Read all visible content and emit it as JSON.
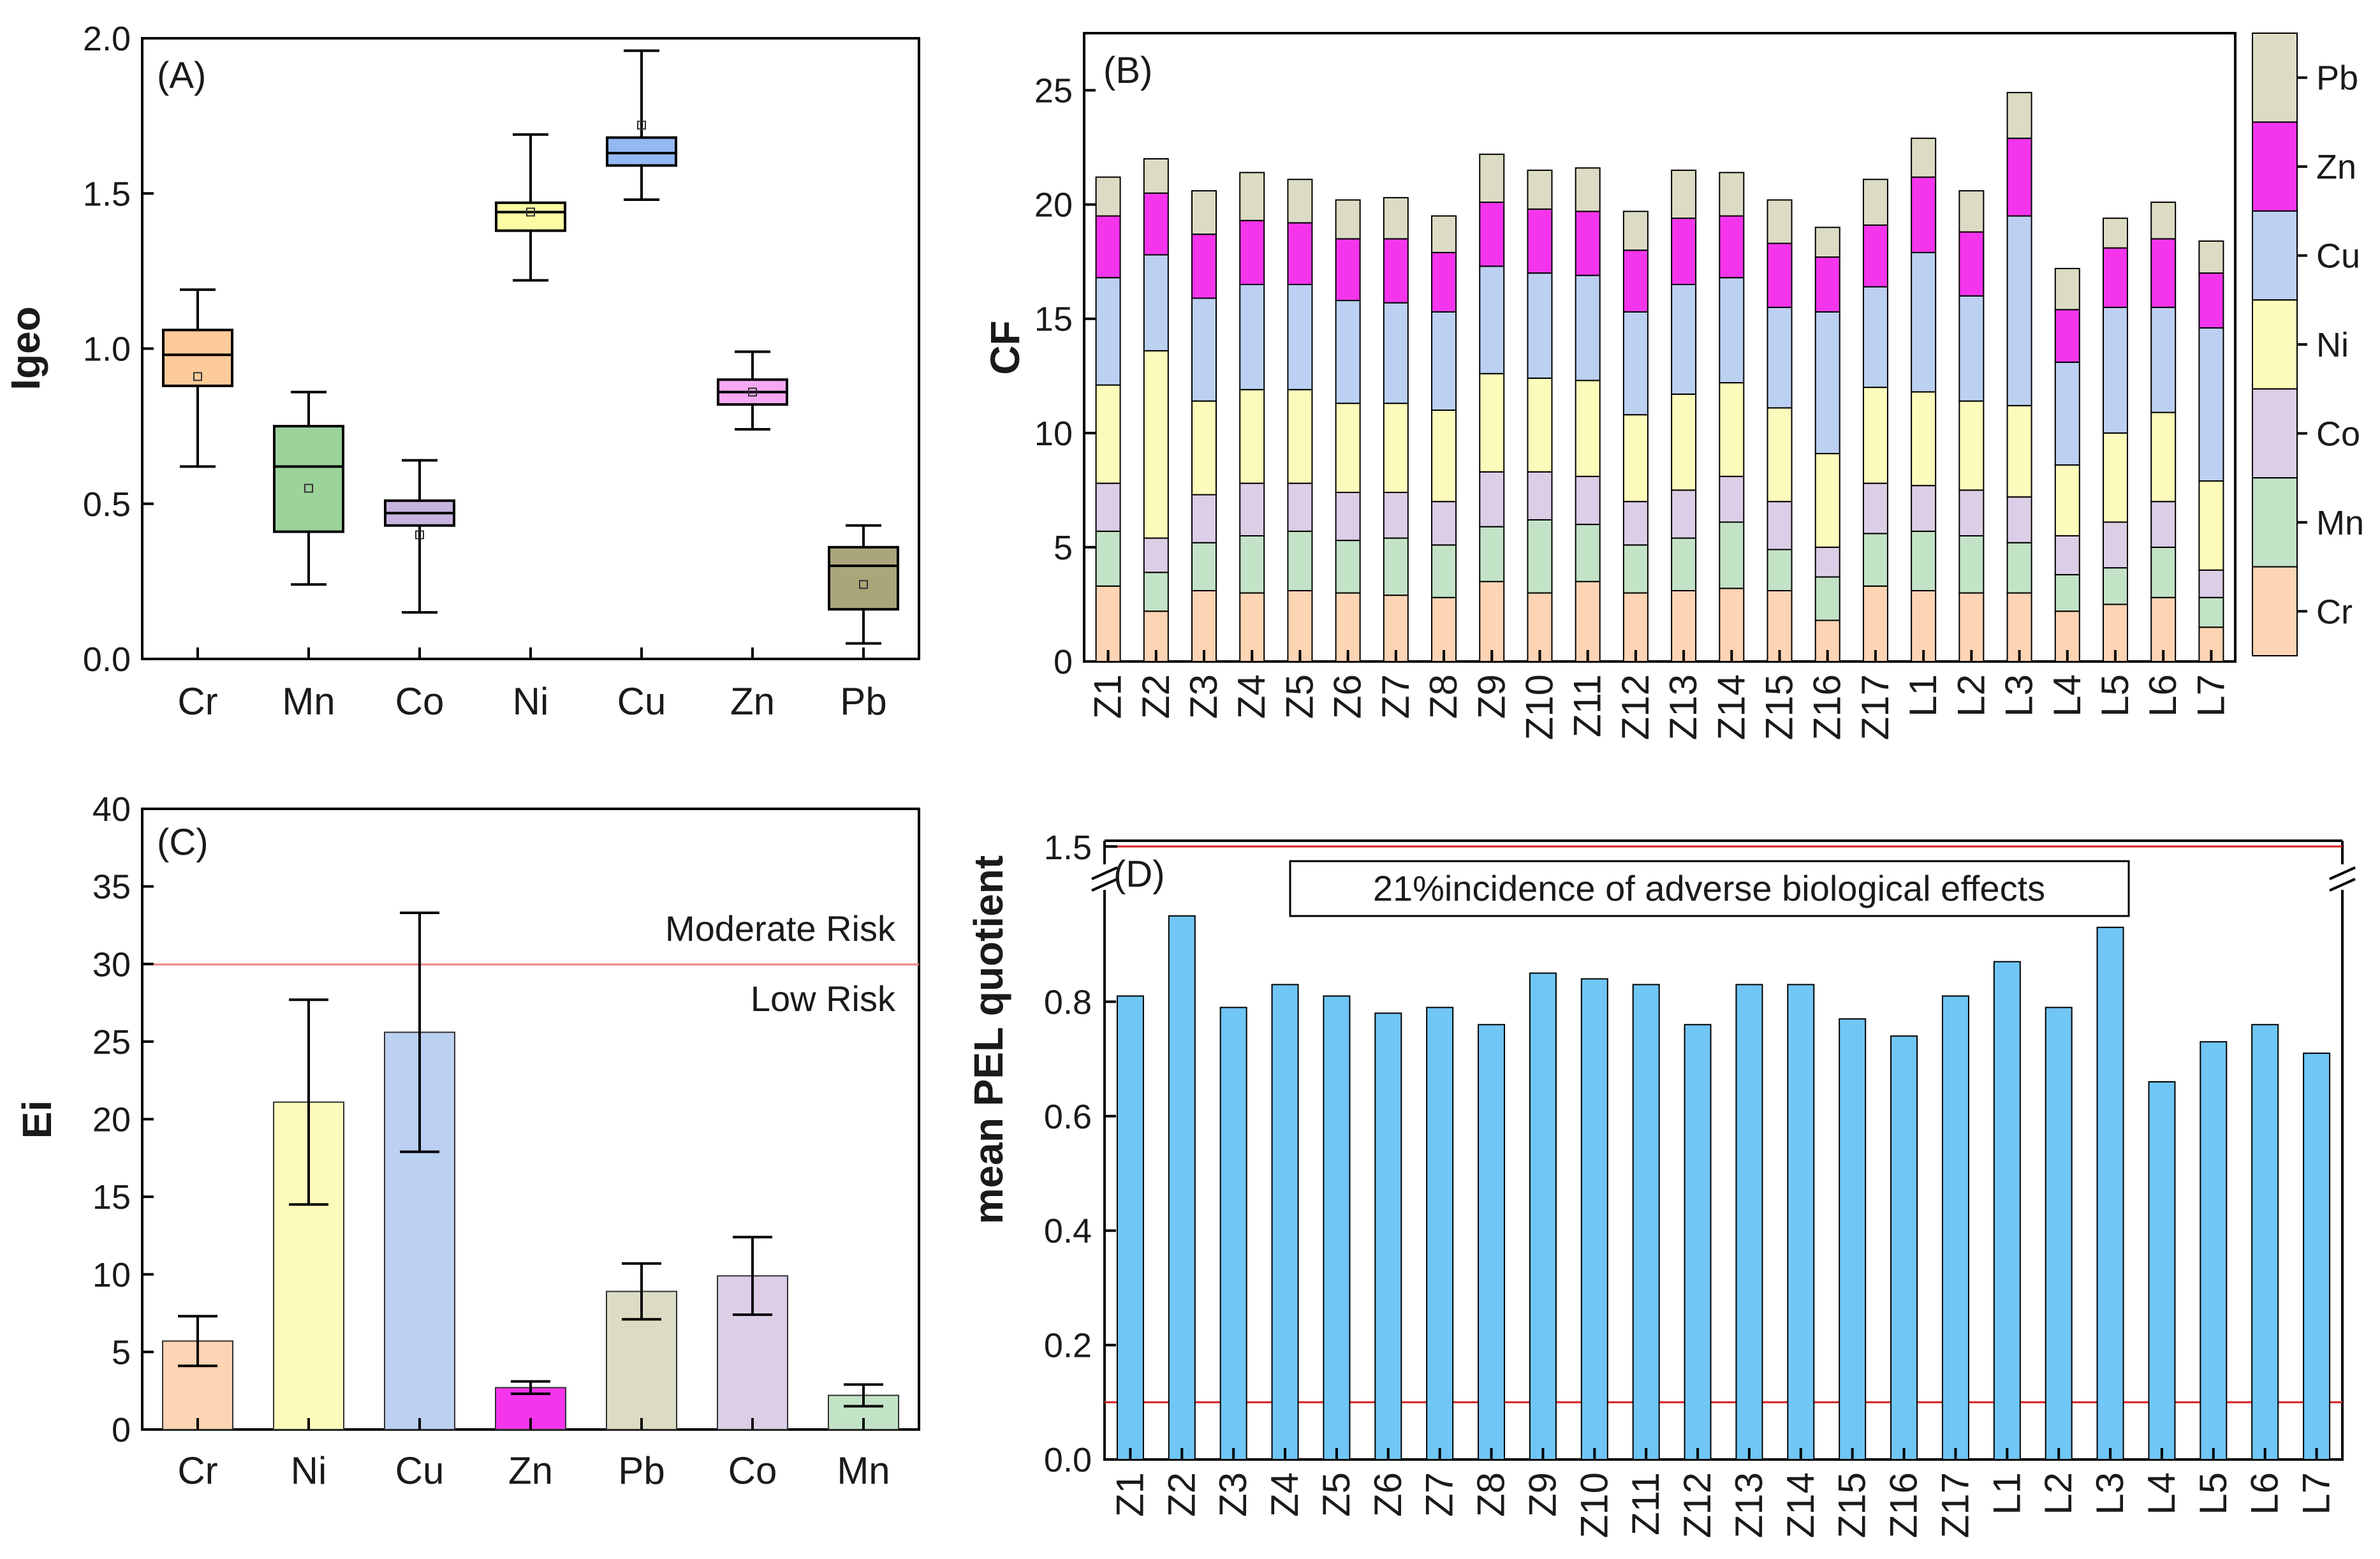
{
  "chart_data": [
    {
      "panel": "(A)",
      "type": "box",
      "ylabel": "Igeo",
      "ylim": [
        0.0,
        2.0
      ],
      "yticks": [
        "0.0",
        "0.5",
        "1.0",
        "1.5",
        "2.0"
      ],
      "categories": [
        "Cr",
        "Mn",
        "Co",
        "Ni",
        "Cu",
        "Zn",
        "Pb"
      ],
      "boxes": [
        {
          "name": "Cr",
          "min": 0.62,
          "q1": 0.88,
          "median": 0.98,
          "q3": 1.06,
          "max": 1.19,
          "mean": 0.91,
          "color": "#fdcb9a"
        },
        {
          "name": "Mn",
          "min": 0.24,
          "q1": 0.41,
          "median": 0.62,
          "q3": 0.75,
          "max": 0.86,
          "mean": 0.55,
          "color": "#9bd39b"
        },
        {
          "name": "Co",
          "min": 0.15,
          "q1": 0.43,
          "median": 0.47,
          "q3": 0.51,
          "max": 0.64,
          "mean": 0.4,
          "color": "#c7b4e0"
        },
        {
          "name": "Ni",
          "min": 1.22,
          "q1": 1.38,
          "median": 1.44,
          "q3": 1.47,
          "max": 1.69,
          "mean": 1.44,
          "color": "#fcfca4"
        },
        {
          "name": "Cu",
          "min": 1.48,
          "q1": 1.59,
          "median": 1.63,
          "q3": 1.68,
          "max": 1.96,
          "mean": 1.72,
          "color": "#93b8f2"
        },
        {
          "name": "Zn",
          "min": 0.74,
          "q1": 0.82,
          "median": 0.86,
          "q3": 0.9,
          "max": 0.99,
          "mean": 0.86,
          "color": "#f7a8f2"
        },
        {
          "name": "Pb",
          "min": 0.05,
          "q1": 0.16,
          "median": 0.3,
          "q3": 0.36,
          "max": 0.43,
          "mean": 0.24,
          "color": "#aaa67a"
        }
      ]
    },
    {
      "panel": "(B)",
      "type": "stacked-bar",
      "ylabel": "CF",
      "ylim": [
        0,
        27.5
      ],
      "yticks": [
        "0",
        "5",
        "10",
        "15",
        "20",
        "25"
      ],
      "categories": [
        "Z1",
        "Z2",
        "Z3",
        "Z4",
        "Z5",
        "Z6",
        "Z7",
        "Z8",
        "Z9",
        "Z10",
        "Z11",
        "Z12",
        "Z13",
        "Z14",
        "Z15",
        "Z16",
        "Z17",
        "L1",
        "L2",
        "L3",
        "L4",
        "L5",
        "L6",
        "L7"
      ],
      "series": [
        {
          "name": "Cr",
          "color": "#fdd4b4",
          "values": [
            3.3,
            2.2,
            3.1,
            3.0,
            3.1,
            3.0,
            2.9,
            2.8,
            3.5,
            3.0,
            3.5,
            3.0,
            3.1,
            3.2,
            3.1,
            1.8,
            3.3,
            3.1,
            3.0,
            3.0,
            2.2,
            2.5,
            2.8,
            1.5
          ]
        },
        {
          "name": "Mn",
          "color": "#c3e3c6",
          "values": [
            2.4,
            1.7,
            2.1,
            2.5,
            2.6,
            2.3,
            2.5,
            2.3,
            2.4,
            3.2,
            2.5,
            2.1,
            2.3,
            2.9,
            1.8,
            1.9,
            2.3,
            2.6,
            2.5,
            2.2,
            1.6,
            1.6,
            2.2,
            1.3
          ]
        },
        {
          "name": "Co",
          "color": "#dbcee6",
          "values": [
            2.1,
            1.5,
            2.1,
            2.3,
            2.1,
            2.1,
            2.0,
            1.9,
            2.4,
            2.1,
            2.1,
            1.9,
            2.1,
            2.0,
            2.1,
            1.3,
            2.2,
            2.0,
            2.0,
            2.0,
            1.7,
            2.0,
            2.0,
            1.2
          ]
        },
        {
          "name": "Ni",
          "color": "#fcfbbb",
          "values": [
            4.3,
            8.2,
            4.1,
            4.1,
            4.1,
            3.9,
            3.9,
            4.0,
            4.3,
            4.1,
            4.2,
            3.8,
            4.2,
            4.1,
            4.1,
            4.1,
            4.2,
            4.1,
            3.9,
            4.0,
            3.1,
            3.9,
            3.9,
            3.9
          ]
        },
        {
          "name": "Cu",
          "color": "#bcd0f2",
          "values": [
            4.7,
            4.2,
            4.5,
            4.6,
            4.6,
            4.5,
            4.4,
            4.3,
            4.7,
            4.6,
            4.6,
            4.5,
            4.8,
            4.6,
            4.4,
            6.2,
            4.4,
            6.1,
            4.6,
            8.3,
            4.5,
            5.5,
            4.6,
            6.7
          ]
        },
        {
          "name": "Zn",
          "color": "#f435ec",
          "values": [
            2.7,
            2.7,
            2.8,
            2.8,
            2.7,
            2.7,
            2.8,
            2.6,
            2.8,
            2.8,
            2.8,
            2.7,
            2.9,
            2.7,
            2.8,
            2.4,
            2.7,
            3.3,
            2.8,
            3.4,
            2.3,
            2.6,
            3.0,
            2.4
          ]
        },
        {
          "name": "Pb",
          "color": "#dcdcc4",
          "values": [
            1.7,
            1.5,
            1.9,
            2.1,
            1.9,
            1.7,
            1.8,
            1.6,
            2.1,
            1.7,
            1.9,
            1.7,
            2.1,
            1.9,
            1.9,
            1.3,
            2.0,
            1.7,
            1.8,
            2.0,
            1.8,
            1.3,
            1.6,
            1.4
          ]
        }
      ],
      "legend": {
        "placement": "right",
        "order": [
          "Pb",
          "Zn",
          "Cu",
          "Ni",
          "Co",
          "Mn",
          "Cr"
        ]
      }
    },
    {
      "panel": "(C)",
      "type": "bar",
      "ylabel": "Ei",
      "ylim": [
        0,
        40
      ],
      "yticks": [
        "0",
        "5",
        "10",
        "15",
        "20",
        "25",
        "30",
        "35",
        "40"
      ],
      "categories": [
        "Cr",
        "Ni",
        "Cu",
        "Zn",
        "Pb",
        "Co",
        "Mn"
      ],
      "values": [
        5.7,
        21.1,
        25.6,
        2.7,
        8.9,
        9.9,
        2.2
      ],
      "errors": [
        1.6,
        6.6,
        7.7,
        0.4,
        1.8,
        2.5,
        0.7
      ],
      "colors": [
        "#fdd4b4",
        "#fcfbbb",
        "#bcd0f2",
        "#f435ec",
        "#dcdcc4",
        "#dbcee6",
        "#c3e3c6"
      ],
      "threshold": 30,
      "threshold_labels": {
        "above": "Moderate Risk",
        "below": "Low Risk"
      }
    },
    {
      "panel": "(D)",
      "type": "bar",
      "ylabel": "mean PEL quotient",
      "ylim": [
        0.0,
        1.0
      ],
      "yticks": [
        "0.0",
        "0.2",
        "0.4",
        "0.6",
        "0.8"
      ],
      "break_tick": "1.5",
      "upper_threshold": 1.5,
      "upper_annotation": "21%incidence of adverse biological effects",
      "lower_threshold": 0.1,
      "categories": [
        "Z1",
        "Z2",
        "Z3",
        "Z4",
        "Z5",
        "Z6",
        "Z7",
        "Z8",
        "Z9",
        "Z10",
        "Z11",
        "Z12",
        "Z13",
        "Z14",
        "Z15",
        "Z16",
        "Z17",
        "L1",
        "L2",
        "L3",
        "L4",
        "L5",
        "L6",
        "L7"
      ],
      "values": [
        0.81,
        0.95,
        0.79,
        0.83,
        0.81,
        0.78,
        0.79,
        0.76,
        0.85,
        0.84,
        0.83,
        0.76,
        0.83,
        0.83,
        0.77,
        0.74,
        0.81,
        0.87,
        0.79,
        0.93,
        0.66,
        0.73,
        0.76,
        0.71
      ],
      "color": "#70c6f5"
    }
  ]
}
